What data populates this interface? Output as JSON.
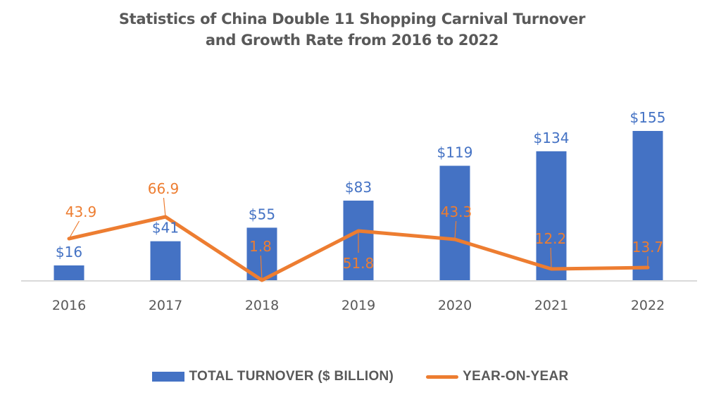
{
  "chart_data": {
    "type": "bar+line",
    "title": "Statistics of China Double 11 Shopping Carnival Turnover and Growth Rate from 2016 to 2022",
    "title_lines": [
      "Statistics of China Double 11 Shopping Carnival Turnover",
      "and Growth Rate from 2016 to 2022"
    ],
    "categories": [
      "2016",
      "2017",
      "2018",
      "2019",
      "2020",
      "2021",
      "2022"
    ],
    "series": [
      {
        "name": "TOTAL TURNOVER ($ BILLION)",
        "type": "bar",
        "color": "#4472C4",
        "values": [
          16,
          41,
          55,
          83,
          119,
          134,
          155
        ],
        "labels": [
          "$16",
          "$41",
          "$55",
          "$83",
          "$119",
          "$134",
          "$155"
        ]
      },
      {
        "name": "YEAR-ON-YEAR",
        "type": "line",
        "color": "#ED7D31",
        "values": [
          43.9,
          66.9,
          1.8,
          51.8,
          43.3,
          12.2,
          13.7
        ],
        "labels": [
          "43.9",
          "66.9",
          "1.8",
          "51.8",
          "43.3",
          "12.2",
          "13.7"
        ]
      }
    ],
    "xlabel": "",
    "ylabel": "",
    "ylim": [
      0,
      155
    ],
    "grid": false,
    "axis_color": "#D9D9D9",
    "tick_color": "#595959",
    "legend_position": "bottom"
  }
}
